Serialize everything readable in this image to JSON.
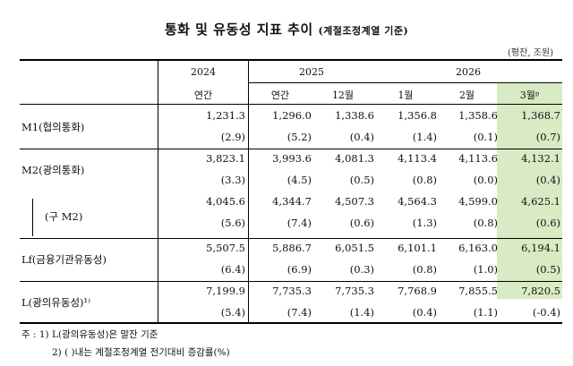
{
  "title": "통화 및 유동성 지표 추이",
  "title_sub": "(계절조정계열 기준)",
  "unit": "(평잔, 조원)",
  "years": [
    "2024",
    "2025",
    "2026"
  ],
  "subheaders": [
    "연간",
    "연간",
    "12월",
    "1월",
    "2월",
    "3월ᵖ"
  ],
  "rows": [
    {
      "label": "M1(협의통화)",
      "values": [
        "1,231.3",
        "1,296.0",
        "1,338.6",
        "1,356.8",
        "1,358.6",
        "1,368.7"
      ],
      "changes": [
        "(2.9)",
        "(5.2)",
        "(0.4)",
        "(1.4)",
        "(0.1)",
        "(0.7)"
      ]
    },
    {
      "label": "M2(광의통화)",
      "values": [
        "3,823.1",
        "3,993.6",
        "4,081.3",
        "4,113.4",
        "4,113.6",
        "4,132.1"
      ],
      "changes": [
        "(3.3)",
        "(4.5)",
        "(0.5)",
        "(0.8)",
        "(0.0)",
        "(0.4)"
      ]
    },
    {
      "label": "(구  M2)",
      "values": [
        "4,045.6",
        "4,344.7",
        "4,507.3",
        "4,564.3",
        "4,599.0",
        "4,625.1"
      ],
      "changes": [
        "(5.6)",
        "(7.4)",
        "(0.6)",
        "(1.3)",
        "(0.8)",
        "(0.6)"
      ]
    },
    {
      "label": "Lf(금융기관유동성)",
      "values": [
        "5,507.5",
        "5,886.7",
        "6,051.5",
        "6,101.1",
        "6,163.0",
        "6,194.1"
      ],
      "changes": [
        "(6.4)",
        "(6.9)",
        "(0.3)",
        "(0.8)",
        "(1.0)",
        "(0.5)"
      ]
    },
    {
      "label": "L(광의유동성)¹⁾",
      "values": [
        "7,199.9",
        "7,735.3",
        "7,735.3",
        "7,768.9",
        "7,855.5",
        "7,820.5"
      ],
      "changes": [
        "(5.4)",
        "(7.4)",
        "(1.4)",
        "(0.4)",
        "(1.1)",
        "(-0.4)"
      ]
    }
  ],
  "notes": [
    "주 : 1) L(광의유동성)은 말잔 기준",
    "2) (   )내는 계절조정계열 전기대비 증감률(%)"
  ]
}
